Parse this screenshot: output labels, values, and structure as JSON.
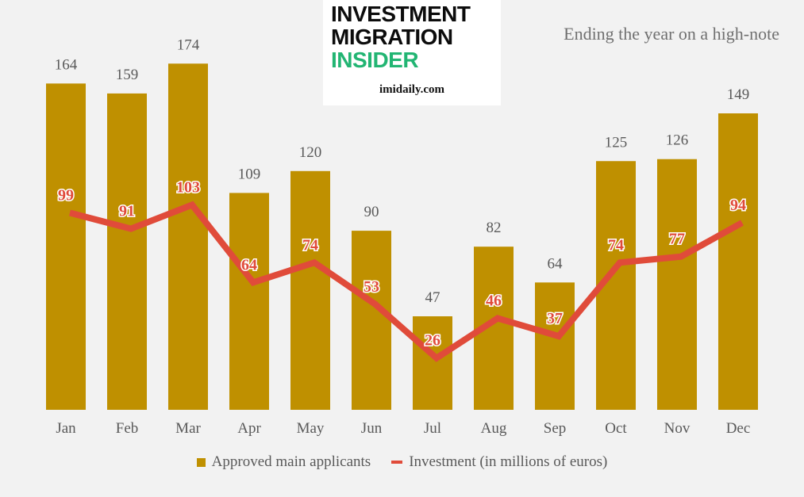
{
  "title": "Ending the year on a high-note",
  "logo": {
    "line1": "INVESTMENT",
    "line2": "MIGRATION",
    "line3": "INSIDER",
    "url": "imidaily.com"
  },
  "colors": {
    "bar": "#bf9000",
    "line": "#e04b3a",
    "logo_green": "#22b573"
  },
  "chart_data": {
    "type": "bar+line",
    "title": "Ending the year on a high-note",
    "categories": [
      "Jan",
      "Feb",
      "Mar",
      "Apr",
      "May",
      "Jun",
      "Jul",
      "Aug",
      "Sep",
      "Oct",
      "Nov",
      "Dec"
    ],
    "series": [
      {
        "name": "Approved main applicants",
        "type": "bar",
        "values": [
          164,
          159,
          174,
          109,
          120,
          90,
          47,
          82,
          64,
          125,
          126,
          149
        ]
      },
      {
        "name": "Investment (in millions of euros)",
        "type": "line",
        "values": [
          99,
          91,
          103,
          64,
          74,
          53,
          26,
          46,
          37,
          74,
          77,
          94
        ]
      }
    ],
    "ylim": [
      0,
      200
    ],
    "grid": false,
    "legend": "bottom"
  }
}
